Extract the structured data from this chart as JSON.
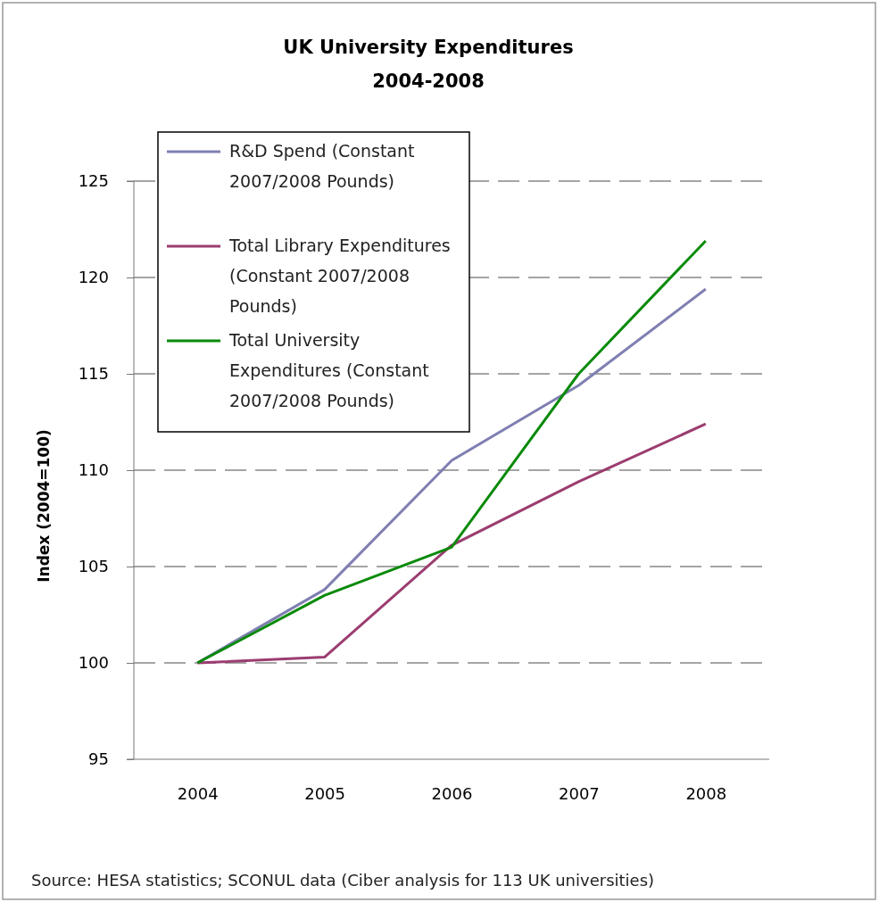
{
  "chart_data": {
    "type": "line",
    "title": "UK University Expenditures\n2004-2008",
    "ylabel": "Index (2004=100)",
    "categories": [
      "2004",
      "2005",
      "2006",
      "2007",
      "2008"
    ],
    "series": [
      {
        "name": "R&D Spend (Constant 2007/2008 Pounds)",
        "color": "#7f7fb2",
        "values": [
          100,
          103.8,
          110.5,
          114.4,
          119.4
        ]
      },
      {
        "name": "Total Library Expenditures (Constant 2007/2008 Pounds)",
        "color": "#9b3d70",
        "values": [
          100,
          100.3,
          106.1,
          109.4,
          112.4
        ]
      },
      {
        "name": "Total University Expenditures (Constant 2007/2008 Pounds)",
        "color": "#0a8a0a",
        "values": [
          100,
          103.5,
          106.0,
          115.0,
          121.9
        ]
      }
    ],
    "ylim": [
      95,
      125
    ],
    "yticks": [
      95,
      100,
      105,
      110,
      115,
      120,
      125
    ],
    "grid": "y",
    "line_style": "solid",
    "marker": "none",
    "legend": "top left",
    "annotations": [
      "Source: HESA statistics; SCONUL data (Ciber analysis for 113 UK universities)"
    ]
  }
}
